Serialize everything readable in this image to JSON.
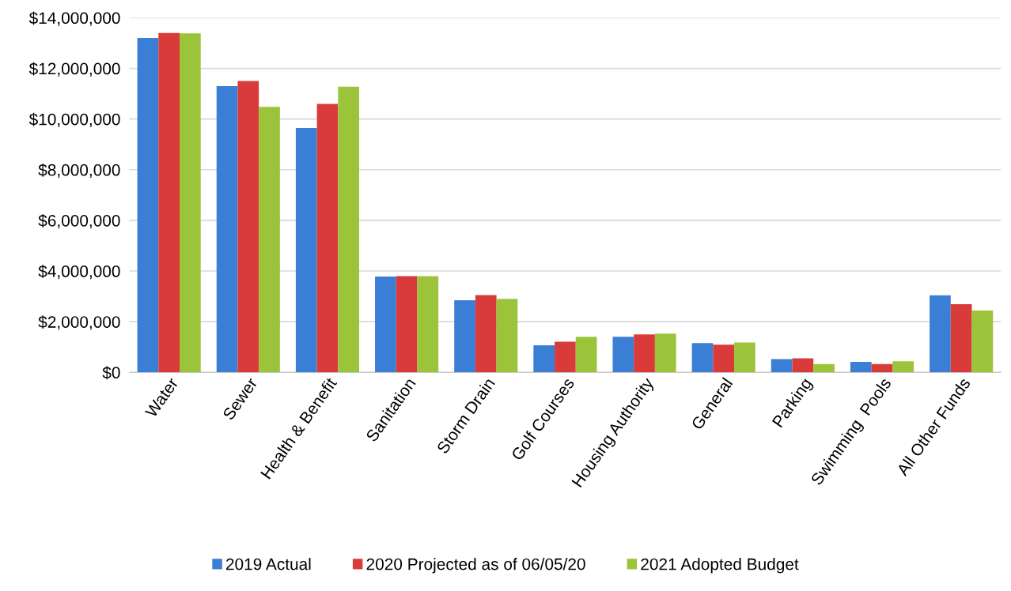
{
  "chart_data": {
    "type": "bar",
    "categories": [
      "Water",
      "Sewer",
      "Health & Benefit",
      "Sanitation",
      "Storm Drain",
      "Golf Courses",
      "Housing Authority",
      "General",
      "Parking",
      "Swimming  Pools",
      "All Other Funds"
    ],
    "series": [
      {
        "name": "2019 Actual",
        "color": "#3a7fd5",
        "values": [
          13200000,
          11300000,
          9650000,
          3780000,
          2850000,
          1070000,
          1400000,
          1150000,
          520000,
          410000,
          3040000
        ]
      },
      {
        "name": "2020 Projected as of 06/05/20",
        "color": "#d93a3a",
        "values": [
          13400000,
          11500000,
          10600000,
          3800000,
          3050000,
          1210000,
          1500000,
          1090000,
          550000,
          330000,
          2690000
        ]
      },
      {
        "name": "2021 Adopted Budget",
        "color": "#9bc43a",
        "values": [
          13380000,
          10480000,
          11280000,
          3800000,
          2900000,
          1400000,
          1530000,
          1180000,
          330000,
          440000,
          2440000
        ]
      }
    ],
    "ylim": [
      0,
      14000000
    ],
    "yticks": [
      {
        "value": 0,
        "label": "$0"
      },
      {
        "value": 2000000,
        "label": "$2,000,000"
      },
      {
        "value": 4000000,
        "label": "$4,000,000"
      },
      {
        "value": 6000000,
        "label": "$6,000,000"
      },
      {
        "value": 8000000,
        "label": "$8,000,000"
      },
      {
        "value": 10000000,
        "label": "$10,000,000"
      },
      {
        "value": 12000000,
        "label": "$12,000,000"
      },
      {
        "value": 14000000,
        "label": "$14,000,000"
      }
    ],
    "grid": "y",
    "legend": "bottom"
  }
}
